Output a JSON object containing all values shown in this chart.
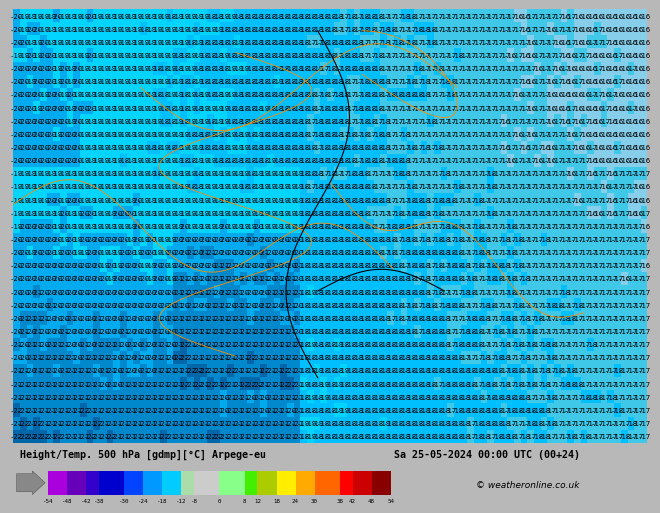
{
  "title_left": "Height/Temp. 500 hPa [gdmp][°C] Arpege-eu",
  "title_right": "Sa 25-05-2024 00:00 UTC (00+24)",
  "copyright": "© weatheronline.co.uk",
  "cb_vals": [
    -54,
    -48,
    -42,
    -38,
    -30,
    -24,
    -18,
    -12,
    -8,
    0,
    8,
    12,
    18,
    24,
    30,
    38,
    42,
    48,
    54
  ],
  "cb_colors": [
    "#9900cc",
    "#6600cc",
    "#3300cc",
    "#0000cc",
    "#0033ff",
    "#0099ff",
    "#00ccff",
    "#00ffff",
    "#aaffaa",
    "#cccccc",
    "#99ff99",
    "#66ff00",
    "#cccc00",
    "#ffaa00",
    "#ff6600",
    "#ff0000",
    "#cc0000",
    "#990000",
    "#660000"
  ],
  "bg_color": "#00d4ff",
  "dark_blue": "#007acc",
  "footer_bg": "#b8b8b8",
  "fig_width": 6.34,
  "fig_height": 4.9,
  "map_rows": 33,
  "map_cols": 95,
  "font_size": 5.2
}
